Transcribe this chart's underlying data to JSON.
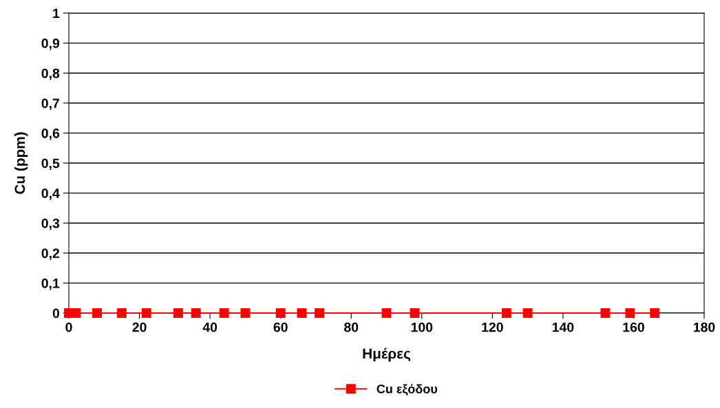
{
  "chart_data": {
    "type": "line",
    "xlabel": "Ημέρες",
    "ylabel": "Cu (ppm)",
    "x": [
      0,
      2,
      8,
      15,
      22,
      31,
      36,
      44,
      50,
      60,
      66,
      71,
      90,
      98,
      124,
      130,
      152,
      159,
      166
    ],
    "series": [
      {
        "name": "Cu εξόδου",
        "color": "#ff0000",
        "values": [
          0,
          0,
          0,
          0,
          0,
          0,
          0,
          0,
          0,
          0,
          0,
          0,
          0,
          0,
          0,
          0,
          0,
          0,
          0
        ]
      }
    ],
    "xlim": [
      0,
      180
    ],
    "xticks": [
      0,
      20,
      40,
      60,
      80,
      100,
      120,
      140,
      160,
      180
    ],
    "ylim": [
      0,
      1
    ],
    "yticks": [
      0,
      {
        "value": 0.1,
        "label": "0,1"
      },
      {
        "value": 0.2,
        "label": "0,2"
      },
      {
        "value": 0.3,
        "label": "0,3"
      },
      {
        "value": 0.4,
        "label": "0,4"
      },
      {
        "value": 0.5,
        "label": "0,5"
      },
      {
        "value": 0.6,
        "label": "0,6"
      },
      {
        "value": 0.7,
        "label": "0,7"
      },
      {
        "value": 0.8,
        "label": "0,8"
      },
      {
        "value": 0.9,
        "label": "0,9"
      },
      1
    ],
    "grid": "y",
    "legend": "bottom",
    "marker": "square",
    "line_style": "solid"
  }
}
